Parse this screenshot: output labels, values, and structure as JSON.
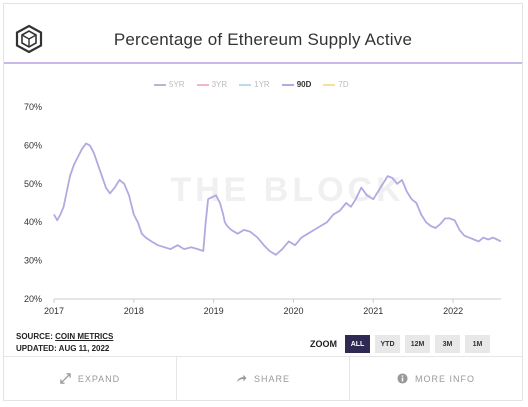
{
  "title": "Percentage of Ethereum Supply Active",
  "watermark": "THE BLOCK",
  "legend": [
    {
      "label": "5YR",
      "color": "#b8b2d8",
      "active": false
    },
    {
      "label": "3YR",
      "color": "#f2b8c6",
      "active": false
    },
    {
      "label": "1YR",
      "color": "#b8dde8",
      "active": false
    },
    {
      "label": "90D",
      "color": "#b3a9e2",
      "active": true
    },
    {
      "label": "7D",
      "color": "#f2e0a0",
      "active": false
    }
  ],
  "source": {
    "label": "SOURCE:",
    "name": "COIN METRICS",
    "updated": "UPDATED: AUG 11, 2022"
  },
  "zoom": {
    "label": "ZOOM",
    "options": [
      "ALL",
      "YTD",
      "12M",
      "3M",
      "1M"
    ],
    "selected": "ALL"
  },
  "footer": [
    {
      "label": "EXPAND",
      "icon": "expand-icon"
    },
    {
      "label": "SHARE",
      "icon": "share-icon"
    },
    {
      "label": "MORE INFO",
      "icon": "info-icon"
    }
  ],
  "colors": {
    "series": "#b3a9e2",
    "accent": "#c9b8ea",
    "zoom_active": "#2e2a54"
  },
  "chart_data": {
    "type": "line",
    "title": "Percentage of Ethereum Supply Active",
    "xlabel": "",
    "ylabel": "",
    "ylim": [
      20,
      70
    ],
    "yticks": [
      "20%",
      "30%",
      "40%",
      "50%",
      "60%",
      "70%"
    ],
    "xticks": [
      "2017",
      "2018",
      "2019",
      "2020",
      "2021",
      "2022"
    ],
    "xlim": [
      2017.0,
      2022.6
    ],
    "grid": false,
    "legend_position": "top",
    "series": [
      {
        "name": "90D",
        "x": [
          2017.0,
          2017.04,
          2017.08,
          2017.12,
          2017.16,
          2017.2,
          2017.25,
          2017.3,
          2017.35,
          2017.4,
          2017.45,
          2017.5,
          2017.55,
          2017.6,
          2017.65,
          2017.7,
          2017.76,
          2017.82,
          2017.88,
          2017.94,
          2018.0,
          2018.05,
          2018.1,
          2018.15,
          2018.22,
          2018.3,
          2018.38,
          2018.46,
          2018.55,
          2018.63,
          2018.72,
          2018.8,
          2018.87,
          2018.9,
          2018.93,
          2018.98,
          2019.03,
          2019.08,
          2019.12,
          2019.14,
          2019.17,
          2019.22,
          2019.3,
          2019.38,
          2019.46,
          2019.55,
          2019.63,
          2019.7,
          2019.78,
          2019.86,
          2019.94,
          2020.02,
          2020.1,
          2020.18,
          2020.26,
          2020.34,
          2020.42,
          2020.5,
          2020.58,
          2020.66,
          2020.72,
          2020.78,
          2020.85,
          2020.92,
          2021.0,
          2021.06,
          2021.12,
          2021.18,
          2021.24,
          2021.3,
          2021.36,
          2021.42,
          2021.48,
          2021.54,
          2021.6,
          2021.66,
          2021.72,
          2021.78,
          2021.84,
          2021.9,
          2021.96,
          2022.02,
          2022.08,
          2022.14,
          2022.2,
          2022.26,
          2022.32,
          2022.38,
          2022.44,
          2022.5,
          2022.55,
          2022.6
        ],
        "y": [
          42,
          40.5,
          42,
          44,
          48,
          52,
          55,
          57,
          59,
          60.5,
          60,
          58,
          55,
          52,
          49,
          47.5,
          49,
          51,
          50,
          47,
          42,
          40,
          37,
          36,
          35,
          34,
          33.5,
          33,
          34,
          33,
          33.5,
          33,
          32.5,
          40,
          46,
          46.5,
          47,
          45,
          42,
          40,
          39,
          38,
          37,
          38,
          37.5,
          36,
          34,
          32.5,
          31.5,
          33,
          35,
          34,
          36,
          37,
          38,
          39,
          40,
          42,
          43,
          45,
          44,
          46,
          49,
          47,
          46,
          48,
          50,
          52,
          51.5,
          50,
          51,
          48,
          46,
          45,
          42,
          40,
          39,
          38.5,
          39.5,
          41,
          41,
          40.5,
          38,
          36.5,
          36,
          35.5,
          35,
          36,
          35.5,
          36,
          35.5,
          35
        ]
      }
    ]
  }
}
